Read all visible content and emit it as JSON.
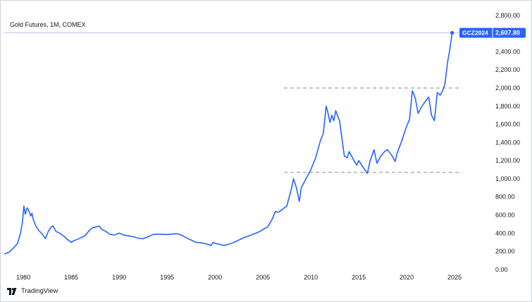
{
  "header": {
    "title": "Gold Futures, 1M, COMEX"
  },
  "brand": {
    "label": "TradingView"
  },
  "price_tag": {
    "symbol": "GCZ2024",
    "price": "2,607.80"
  },
  "colors": {
    "line": "#2962ff",
    "tag_bg": "#2962ff",
    "dashed": "#888888",
    "price_line": "#b8c3f2"
  },
  "chart_data": {
    "type": "line",
    "title": "Gold Futures, 1M, COMEX",
    "xlabel": "",
    "ylabel": "",
    "xlim": [
      1978,
      2028.6
    ],
    "ylim": [
      -40,
      2830
    ],
    "x_ticks": [
      1980,
      1985,
      1990,
      1995,
      2000,
      2005,
      2010,
      2015,
      2020,
      2025
    ],
    "x_tick_labels": [
      "1980",
      "1985",
      "1990",
      "1995",
      "2000",
      "2005",
      "2010",
      "2015",
      "2020",
      "2025"
    ],
    "y_ticks": [
      0,
      200,
      400,
      600,
      800,
      1000,
      1200,
      1400,
      1600,
      1800,
      2000,
      2200,
      2400,
      2600,
      2800
    ],
    "y_tick_labels": [
      "0.00",
      "200.00",
      "400.00",
      "600.00",
      "800.00",
      "1,000.00",
      "1,200.00",
      "1,400.00",
      "1,600.00",
      "1,800.00",
      "2,000.00",
      "2,200.00",
      "2,400.00",
      "2,600.00",
      "2,800.00"
    ],
    "grid": false,
    "reference_lines": [
      {
        "y": 2000,
        "x_start": 2007.2,
        "x_end": 2025.8,
        "style": "dashed"
      },
      {
        "y": 1070,
        "x_start": 2007.2,
        "x_end": 2025.8,
        "style": "dashed"
      }
    ],
    "last_value": {
      "x": 2024.75,
      "y": 2607.8
    },
    "series": [
      {
        "x": [
          1978.0,
          1978.5,
          1979.0,
          1979.4,
          1979.7,
          1979.9,
          1980.05,
          1980.2,
          1980.4,
          1980.6,
          1980.75,
          1980.9,
          1981.0,
          1981.3,
          1981.6,
          1981.9,
          1982.3,
          1982.6,
          1982.9,
          1983.1,
          1983.4,
          1983.8,
          1984.2,
          1984.6,
          1985.0,
          1985.3,
          1985.6,
          1986.0,
          1986.4,
          1986.8,
          1987.2,
          1987.6,
          1987.9,
          1988.2,
          1988.6,
          1989.0,
          1989.5,
          1990.0,
          1990.5,
          1991.0,
          1991.5,
          1992.0,
          1992.5,
          1993.0,
          1993.5,
          1994.0,
          1995.0,
          1996.0,
          1996.5,
          1997.0,
          1997.5,
          1998.0,
          1998.5,
          1999.0,
          1999.6,
          1999.8,
          2000.0,
          2000.5,
          2001.0,
          2001.3,
          2001.6,
          2002.0,
          2002.5,
          2003.0,
          2003.5,
          2004.0,
          2004.5,
          2005.0,
          2005.5,
          2006.0,
          2006.3,
          2006.6,
          2007.0,
          2007.5,
          2008.0,
          2008.2,
          2008.5,
          2008.8,
          2009.0,
          2009.5,
          2010.0,
          2010.5,
          2011.0,
          2011.3,
          2011.6,
          2011.8,
          2012.0,
          2012.2,
          2012.4,
          2012.6,
          2012.8,
          2013.0,
          2013.3,
          2013.5,
          2013.8,
          2014.0,
          2014.5,
          2014.8,
          2015.0,
          2015.5,
          2015.9,
          2016.2,
          2016.6,
          2016.9,
          2017.3,
          2017.7,
          2018.0,
          2018.5,
          2018.8,
          2019.0,
          2019.5,
          2020.0,
          2020.3,
          2020.6,
          2020.9,
          2021.2,
          2021.6,
          2022.0,
          2022.3,
          2022.6,
          2022.9,
          2023.2,
          2023.5,
          2023.8,
          2024.0,
          2024.3,
          2024.5,
          2024.75
        ],
        "y": [
          170,
          190,
          240,
          290,
          400,
          520,
          700,
          610,
          680,
          640,
          590,
          620,
          560,
          480,
          430,
          400,
          340,
          420,
          470,
          480,
          420,
          400,
          370,
          330,
          300,
          320,
          330,
          350,
          370,
          420,
          460,
          470,
          480,
          440,
          420,
          390,
          380,
          400,
          380,
          370,
          360,
          345,
          340,
          360,
          385,
          390,
          385,
          395,
          380,
          350,
          325,
          300,
          295,
          285,
          265,
          300,
          290,
          275,
          265,
          275,
          285,
          300,
          325,
          350,
          370,
          390,
          410,
          440,
          470,
          560,
          640,
          630,
          660,
          700,
          900,
          1000,
          900,
          750,
          900,
          1000,
          1100,
          1230,
          1420,
          1500,
          1800,
          1720,
          1620,
          1700,
          1640,
          1750,
          1690,
          1640,
          1400,
          1250,
          1230,
          1300,
          1200,
          1150,
          1200,
          1120,
          1060,
          1200,
          1320,
          1170,
          1250,
          1300,
          1320,
          1250,
          1190,
          1280,
          1420,
          1580,
          1650,
          1970,
          1890,
          1720,
          1800,
          1860,
          1900,
          1700,
          1640,
          1950,
          1920,
          1980,
          2050,
          2300,
          2420,
          2607.8
        ]
      }
    ]
  }
}
